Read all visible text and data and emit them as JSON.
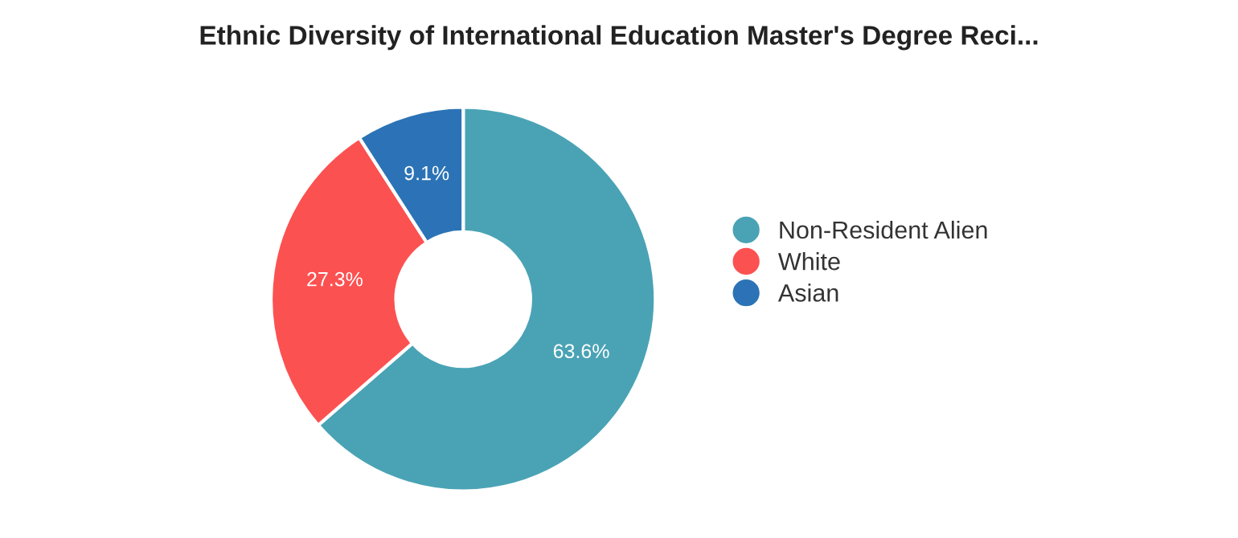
{
  "chart_data": {
    "type": "donut",
    "title": "Ethnic Diversity of International Education Master's Degree Reci...",
    "categories": [
      "Non-Resident Alien",
      "White",
      "Asian"
    ],
    "values": [
      63.6,
      27.3,
      9.1
    ],
    "colors": [
      "#4aa3b5",
      "#fc5151",
      "#2b73b6"
    ],
    "value_labels": [
      "63.6%",
      "27.3%",
      "9.1%"
    ],
    "legend": "right"
  }
}
